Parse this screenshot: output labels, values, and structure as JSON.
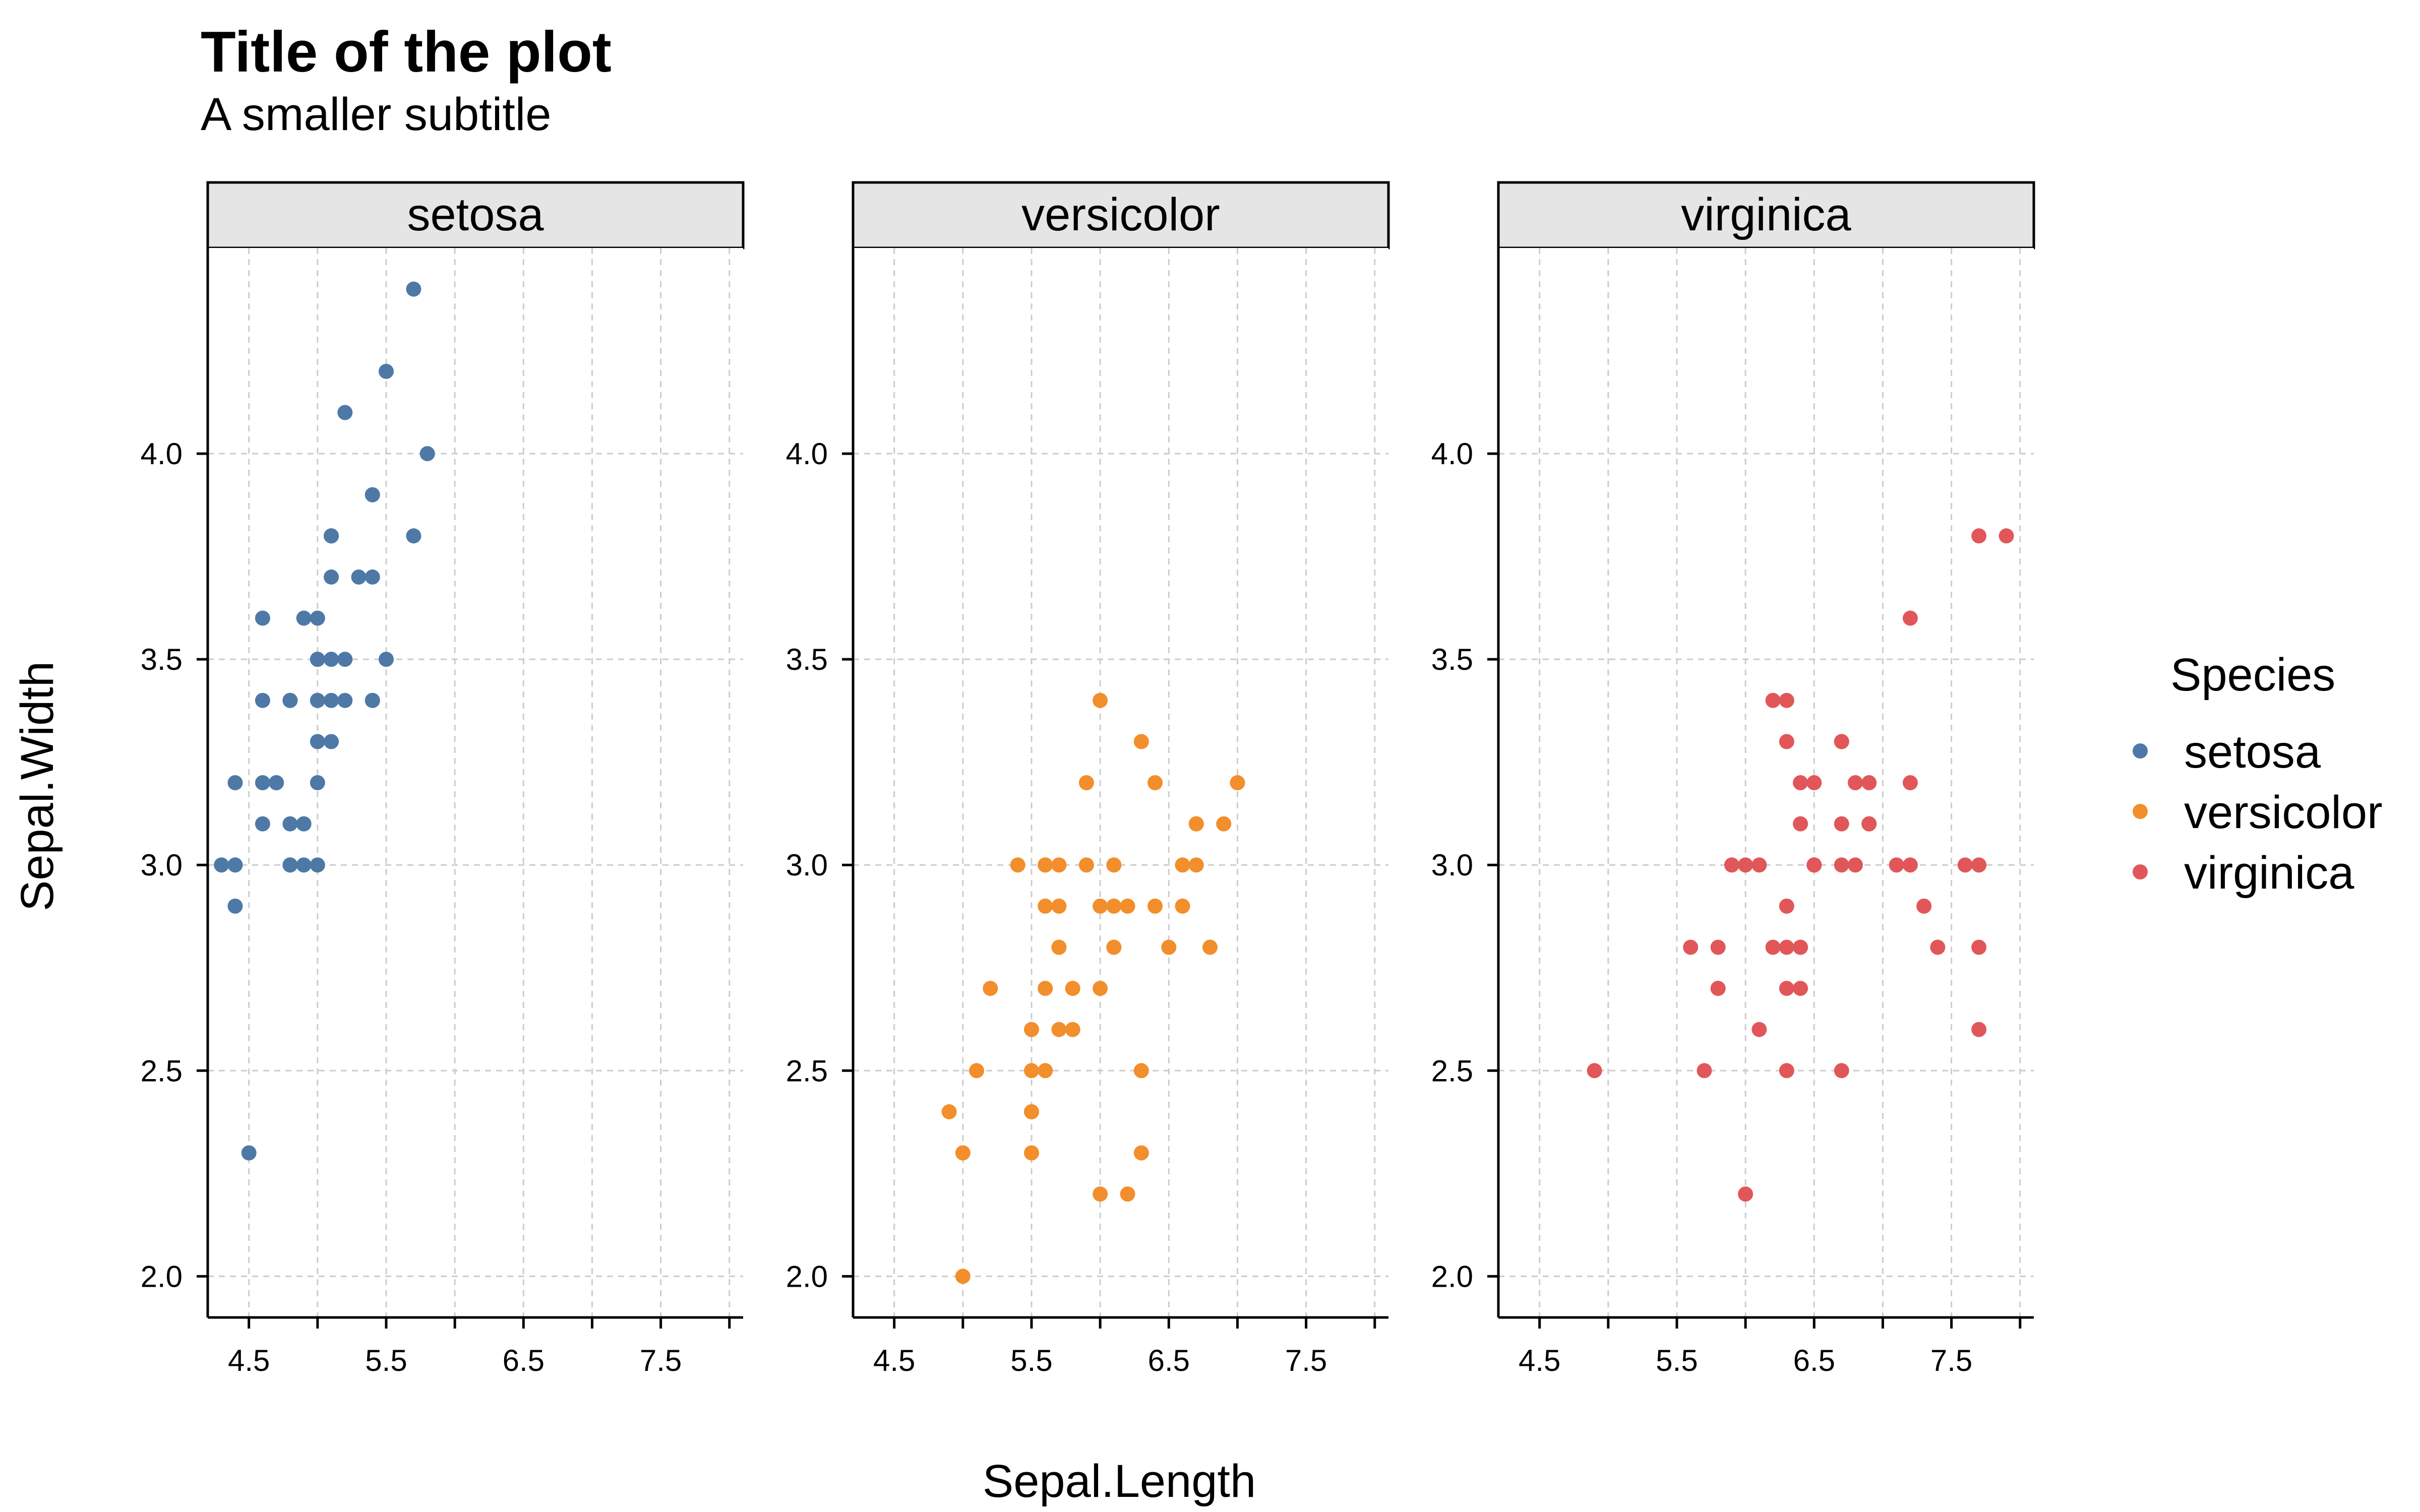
{
  "chart_data": {
    "type": "scatter",
    "title": "Title of the plot",
    "subtitle": "A smaller subtitle",
    "xlabel": "Sepal.Length",
    "ylabel": "Sepal.Width",
    "xlim": [
      4.2,
      8.1
    ],
    "ylim": [
      1.9,
      4.5
    ],
    "x_ticks": [
      4.5,
      5,
      5.5,
      6,
      6.5,
      7,
      7.5,
      8
    ],
    "x_tick_labels": [
      "4.5",
      "",
      "5.5",
      "",
      "6.5",
      "",
      "7.5",
      ""
    ],
    "y_ticks": [
      2.0,
      2.5,
      3.0,
      3.5,
      4.0
    ],
    "y_tick_labels": [
      "2.0",
      "2.5",
      "3.0",
      "3.5",
      "4.0"
    ],
    "grid": true,
    "legend_title": "Species",
    "legend_position": "right",
    "facets": [
      "setosa",
      "versicolor",
      "virginica"
    ],
    "series": [
      {
        "name": "setosa",
        "color": "#4e79a7",
        "points": [
          [
            5.1,
            3.5
          ],
          [
            4.9,
            3.0
          ],
          [
            4.7,
            3.2
          ],
          [
            4.6,
            3.1
          ],
          [
            5.0,
            3.6
          ],
          [
            5.4,
            3.9
          ],
          [
            4.6,
            3.4
          ],
          [
            5.0,
            3.4
          ],
          [
            4.4,
            2.9
          ],
          [
            4.9,
            3.1
          ],
          [
            5.4,
            3.7
          ],
          [
            4.8,
            3.4
          ],
          [
            4.8,
            3.0
          ],
          [
            4.3,
            3.0
          ],
          [
            5.8,
            4.0
          ],
          [
            5.7,
            4.4
          ],
          [
            5.4,
            3.9
          ],
          [
            5.1,
            3.5
          ],
          [
            5.7,
            3.8
          ],
          [
            5.1,
            3.8
          ],
          [
            5.4,
            3.4
          ],
          [
            5.1,
            3.7
          ],
          [
            4.6,
            3.6
          ],
          [
            5.1,
            3.3
          ],
          [
            4.8,
            3.4
          ],
          [
            5.0,
            3.0
          ],
          [
            5.0,
            3.4
          ],
          [
            5.2,
            3.5
          ],
          [
            5.2,
            3.4
          ],
          [
            4.7,
            3.2
          ],
          [
            4.8,
            3.1
          ],
          [
            5.4,
            3.4
          ],
          [
            5.2,
            4.1
          ],
          [
            5.5,
            4.2
          ],
          [
            4.9,
            3.1
          ],
          [
            5.0,
            3.2
          ],
          [
            5.5,
            3.5
          ],
          [
            4.9,
            3.6
          ],
          [
            4.4,
            3.0
          ],
          [
            5.1,
            3.4
          ],
          [
            5.0,
            3.5
          ],
          [
            4.5,
            2.3
          ],
          [
            4.4,
            3.2
          ],
          [
            5.0,
            3.5
          ],
          [
            5.1,
            3.8
          ],
          [
            4.8,
            3.0
          ],
          [
            5.1,
            3.8
          ],
          [
            4.6,
            3.2
          ],
          [
            5.3,
            3.7
          ],
          [
            5.0,
            3.3
          ]
        ]
      },
      {
        "name": "versicolor",
        "color": "#f28e2b",
        "points": [
          [
            7.0,
            3.2
          ],
          [
            6.4,
            3.2
          ],
          [
            6.9,
            3.1
          ],
          [
            5.5,
            2.3
          ],
          [
            6.5,
            2.8
          ],
          [
            5.7,
            2.8
          ],
          [
            6.3,
            3.3
          ],
          [
            4.9,
            2.4
          ],
          [
            6.6,
            2.9
          ],
          [
            5.2,
            2.7
          ],
          [
            5.0,
            2.0
          ],
          [
            5.9,
            3.0
          ],
          [
            6.0,
            2.2
          ],
          [
            6.1,
            2.9
          ],
          [
            5.6,
            2.9
          ],
          [
            6.7,
            3.1
          ],
          [
            5.6,
            3.0
          ],
          [
            5.8,
            2.7
          ],
          [
            6.2,
            2.2
          ],
          [
            5.6,
            2.5
          ],
          [
            5.9,
            3.2
          ],
          [
            6.1,
            2.8
          ],
          [
            6.3,
            2.5
          ],
          [
            6.1,
            2.8
          ],
          [
            6.4,
            2.9
          ],
          [
            6.6,
            3.0
          ],
          [
            6.8,
            2.8
          ],
          [
            6.7,
            3.0
          ],
          [
            6.0,
            2.9
          ],
          [
            5.7,
            2.6
          ],
          [
            5.5,
            2.4
          ],
          [
            5.5,
            2.4
          ],
          [
            5.8,
            2.7
          ],
          [
            6.0,
            2.7
          ],
          [
            5.4,
            3.0
          ],
          [
            6.0,
            3.4
          ],
          [
            6.7,
            3.1
          ],
          [
            6.3,
            2.3
          ],
          [
            5.6,
            3.0
          ],
          [
            5.5,
            2.5
          ],
          [
            5.5,
            2.6
          ],
          [
            6.1,
            3.0
          ],
          [
            5.8,
            2.6
          ],
          [
            5.0,
            2.3
          ],
          [
            5.6,
            2.7
          ],
          [
            5.7,
            3.0
          ],
          [
            5.7,
            2.9
          ],
          [
            6.2,
            2.9
          ],
          [
            5.1,
            2.5
          ],
          [
            5.7,
            2.8
          ]
        ]
      },
      {
        "name": "virginica",
        "color": "#e15759",
        "points": [
          [
            6.3,
            3.3
          ],
          [
            5.8,
            2.7
          ],
          [
            7.1,
            3.0
          ],
          [
            6.3,
            2.9
          ],
          [
            6.5,
            3.0
          ],
          [
            7.6,
            3.0
          ],
          [
            4.9,
            2.5
          ],
          [
            7.3,
            2.9
          ],
          [
            6.7,
            2.5
          ],
          [
            7.2,
            3.6
          ],
          [
            6.5,
            3.2
          ],
          [
            6.4,
            2.7
          ],
          [
            6.8,
            3.0
          ],
          [
            5.7,
            2.5
          ],
          [
            5.8,
            2.8
          ],
          [
            6.4,
            3.2
          ],
          [
            6.5,
            3.0
          ],
          [
            7.7,
            3.8
          ],
          [
            7.7,
            2.6
          ],
          [
            6.0,
            2.2
          ],
          [
            6.9,
            3.2
          ],
          [
            5.6,
            2.8
          ],
          [
            7.7,
            2.8
          ],
          [
            6.3,
            2.7
          ],
          [
            6.7,
            3.3
          ],
          [
            7.2,
            3.2
          ],
          [
            6.2,
            2.8
          ],
          [
            6.1,
            3.0
          ],
          [
            6.4,
            2.8
          ],
          [
            7.2,
            3.0
          ],
          [
            7.4,
            2.8
          ],
          [
            7.9,
            3.8
          ],
          [
            6.4,
            2.8
          ],
          [
            6.3,
            2.8
          ],
          [
            6.1,
            2.6
          ],
          [
            7.7,
            3.0
          ],
          [
            6.3,
            3.4
          ],
          [
            6.4,
            3.1
          ],
          [
            6.0,
            3.0
          ],
          [
            6.9,
            3.1
          ],
          [
            6.7,
            3.1
          ],
          [
            6.9,
            3.1
          ],
          [
            5.8,
            2.7
          ],
          [
            6.8,
            3.2
          ],
          [
            6.7,
            3.3
          ],
          [
            6.7,
            3.0
          ],
          [
            6.3,
            2.5
          ],
          [
            6.5,
            3.0
          ],
          [
            6.2,
            3.4
          ],
          [
            5.9,
            3.0
          ]
        ]
      }
    ]
  }
}
